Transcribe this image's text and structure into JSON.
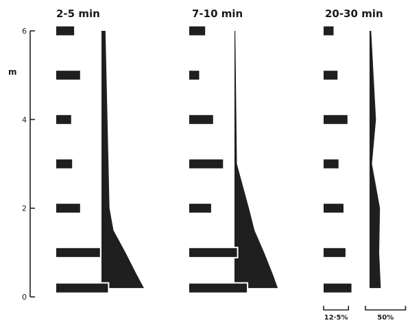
{
  "chart_data": {
    "type": "bar",
    "ylabel": "m",
    "y_ticks": [
      0,
      2,
      4,
      6
    ],
    "ylim": [
      0,
      6
    ],
    "grid": false,
    "legend": "none",
    "scale_bars": [
      {
        "label": "12·5%",
        "percent": 12.5,
        "applies_to": "bars"
      },
      {
        "label": "50%",
        "percent": 50,
        "applies_to": "profile"
      }
    ],
    "panels": [
      {
        "title": "2-5 min",
        "bars": [
          {
            "depth": 6,
            "percent": 9
          },
          {
            "depth": 5,
            "percent": 12
          },
          {
            "depth": 4,
            "percent": 7.5
          },
          {
            "depth": 3,
            "percent": 8
          },
          {
            "depth": 2,
            "percent": 12
          },
          {
            "depth": 1,
            "percent": 22
          },
          {
            "depth": 0.2,
            "percent": 26
          }
        ],
        "profile": [
          {
            "depth": 6,
            "percent": 5
          },
          {
            "depth": 2,
            "percent": 10
          },
          {
            "depth": 1.5,
            "percent": 15
          },
          {
            "depth": 1,
            "percent": 30
          },
          {
            "depth": 0.5,
            "percent": 44
          },
          {
            "depth": 0.2,
            "percent": 53
          }
        ]
      },
      {
        "title": "7-10 min",
        "bars": [
          {
            "depth": 6,
            "percent": 8
          },
          {
            "depth": 5,
            "percent": 5
          },
          {
            "depth": 4,
            "percent": 12
          },
          {
            "depth": 3,
            "percent": 17
          },
          {
            "depth": 2,
            "percent": 11
          },
          {
            "depth": 1,
            "percent": 24
          },
          {
            "depth": 0.2,
            "percent": 29
          }
        ],
        "profile": [
          {
            "depth": 6,
            "percent": 1
          },
          {
            "depth": 3,
            "percent": 3
          },
          {
            "depth": 2,
            "percent": 18
          },
          {
            "depth": 1.5,
            "percent": 25
          },
          {
            "depth": 1,
            "percent": 37
          },
          {
            "depth": 0.5,
            "percent": 48
          },
          {
            "depth": 0.2,
            "percent": 54
          }
        ]
      },
      {
        "title": "20-30 min",
        "bars": [
          {
            "depth": 6,
            "percent": 5
          },
          {
            "depth": 5,
            "percent": 7
          },
          {
            "depth": 4,
            "percent": 12
          },
          {
            "depth": 3,
            "percent": 7.5
          },
          {
            "depth": 2,
            "percent": 10
          },
          {
            "depth": 1,
            "percent": 11
          },
          {
            "depth": 0.2,
            "percent": 14
          }
        ],
        "profile": [
          {
            "depth": 6,
            "percent": 2
          },
          {
            "depth": 4,
            "percent": 8
          },
          {
            "depth": 3,
            "percent": 3
          },
          {
            "depth": 2,
            "percent": 13
          },
          {
            "depth": 1,
            "percent": 12
          },
          {
            "depth": 0.2,
            "percent": 14
          }
        ]
      }
    ]
  }
}
